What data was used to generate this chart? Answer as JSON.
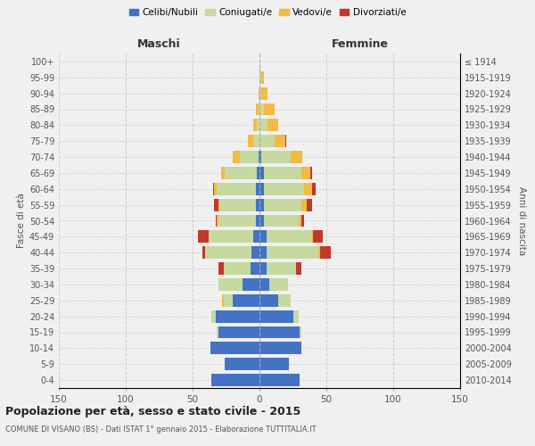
{
  "age_groups": [
    "0-4",
    "5-9",
    "10-14",
    "15-19",
    "20-24",
    "25-29",
    "30-34",
    "35-39",
    "40-44",
    "45-49",
    "50-54",
    "55-59",
    "60-64",
    "65-69",
    "70-74",
    "75-79",
    "80-84",
    "85-89",
    "90-94",
    "95-99",
    "100+"
  ],
  "birth_years": [
    "2010-2014",
    "2005-2009",
    "2000-2004",
    "1995-1999",
    "1990-1994",
    "1985-1989",
    "1980-1984",
    "1975-1979",
    "1970-1974",
    "1965-1969",
    "1960-1964",
    "1955-1959",
    "1950-1954",
    "1945-1949",
    "1940-1944",
    "1935-1939",
    "1930-1934",
    "1925-1929",
    "1920-1924",
    "1915-1919",
    "≤ 1914"
  ],
  "males": {
    "celibi": [
      36,
      26,
      37,
      31,
      33,
      20,
      13,
      7,
      6,
      5,
      3,
      3,
      3,
      2,
      1,
      0,
      0,
      0,
      0,
      0,
      0
    ],
    "coniugati": [
      0,
      0,
      0,
      1,
      3,
      7,
      18,
      20,
      35,
      33,
      28,
      27,
      29,
      24,
      14,
      5,
      2,
      1,
      0,
      0,
      0
    ],
    "vedovi": [
      0,
      0,
      0,
      0,
      0,
      1,
      0,
      0,
      0,
      0,
      1,
      1,
      2,
      3,
      5,
      4,
      3,
      2,
      1,
      0,
      0
    ],
    "divorziati": [
      0,
      0,
      0,
      0,
      0,
      0,
      0,
      4,
      2,
      8,
      1,
      3,
      1,
      0,
      0,
      0,
      0,
      0,
      0,
      0,
      0
    ]
  },
  "females": {
    "nubili": [
      30,
      22,
      31,
      30,
      25,
      14,
      7,
      5,
      5,
      5,
      3,
      3,
      3,
      3,
      1,
      0,
      0,
      0,
      0,
      0,
      0
    ],
    "coniugate": [
      0,
      0,
      0,
      1,
      4,
      9,
      14,
      22,
      39,
      34,
      26,
      28,
      30,
      28,
      22,
      11,
      6,
      3,
      1,
      1,
      0
    ],
    "vedove": [
      0,
      0,
      0,
      0,
      0,
      0,
      0,
      0,
      1,
      1,
      2,
      4,
      6,
      7,
      9,
      8,
      8,
      8,
      5,
      2,
      0
    ],
    "divorziate": [
      0,
      0,
      0,
      0,
      0,
      0,
      0,
      4,
      8,
      7,
      2,
      4,
      3,
      1,
      0,
      1,
      0,
      0,
      0,
      0,
      0
    ]
  },
  "colors": {
    "celibi": "#4472c4",
    "coniugati": "#c5d9a0",
    "vedovi": "#f6b944",
    "divorziati": "#c0392b"
  },
  "title": "Popolazione per età, sesso e stato civile - 2015",
  "subtitle": "COMUNE DI VISANO (BS) - Dati ISTAT 1° gennaio 2015 - Elaborazione TUTTITALIA.IT",
  "xlabel_left": "Maschi",
  "xlabel_right": "Femmine",
  "ylabel_left": "Fasce di età",
  "ylabel_right": "Anni di nascita",
  "legend_labels": [
    "Celibi/Nubili",
    "Coniugati/e",
    "Vedovi/e",
    "Divorziati/e"
  ],
  "xlim": 150,
  "background_color": "#f0f0f0",
  "grid_color": "#cccccc"
}
